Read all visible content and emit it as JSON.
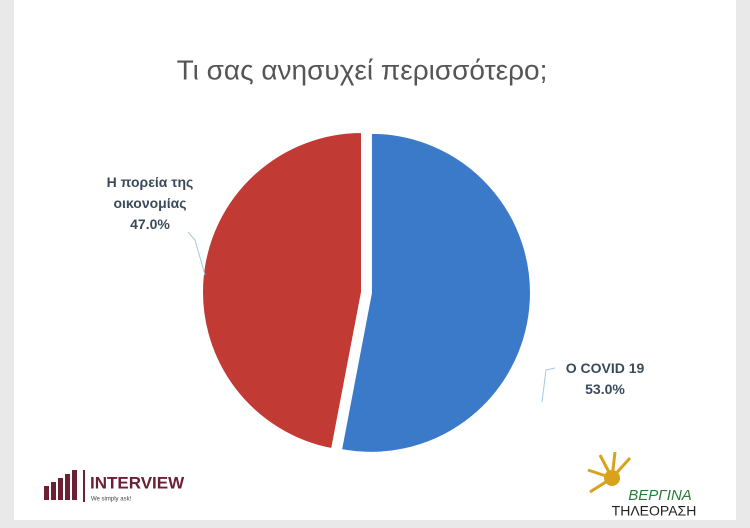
{
  "chart_data": {
    "type": "pie",
    "title": "Τι σας ανησυχεί περισσότερο;",
    "categories": [
      "Ο COVID 19",
      "Η πορεία της οικονομίας"
    ],
    "values": [
      53.0,
      47.0
    ],
    "value_labels": [
      "53.0%",
      "47.0%"
    ],
    "colors": [
      "#3b79c9",
      "#c13a33"
    ]
  },
  "logos": {
    "interview": {
      "name": "INTERVIEW",
      "slogan": "We simply ask!"
    },
    "vergina": {
      "name": "ΒΕΡΓΙΝΑ",
      "sub": "ΤΗΛΕΟΡΑΣΗ"
    }
  }
}
